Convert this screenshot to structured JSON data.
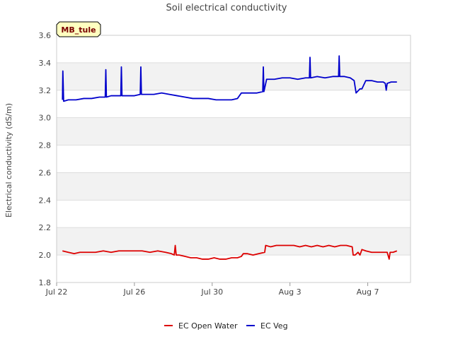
{
  "chart_data": {
    "type": "line",
    "title": "Soil electrical conductivity",
    "xlabel": "",
    "ylabel": "Electrical conductivity (dS/m)",
    "site_label": "MB_tule",
    "xlim": [
      0,
      18.2
    ],
    "ylim": [
      1.8,
      3.6
    ],
    "x_ticks": [
      {
        "x": 0,
        "label": "Jul 22"
      },
      {
        "x": 4,
        "label": "Jul 26"
      },
      {
        "x": 8,
        "label": "Jul 30"
      },
      {
        "x": 12,
        "label": "Aug 3"
      },
      {
        "x": 16,
        "label": "Aug 7"
      }
    ],
    "y_ticks": [
      {
        "y": 1.8,
        "label": "1.8"
      },
      {
        "y": 2.0,
        "label": "2.0"
      },
      {
        "y": 2.2,
        "label": "2.2"
      },
      {
        "y": 2.4,
        "label": "2.4"
      },
      {
        "y": 2.6,
        "label": "2.6"
      },
      {
        "y": 2.8,
        "label": "2.8"
      },
      {
        "y": 3.0,
        "label": "3.0"
      },
      {
        "y": 3.2,
        "label": "3.2"
      },
      {
        "y": 3.4,
        "label": "3.4"
      },
      {
        "y": 3.6,
        "label": "3.6"
      }
    ],
    "grid": true,
    "legend_position": "bottom-center",
    "series": [
      {
        "name": "EC Open Water",
        "color": "#dd0000",
        "x": [
          0.3,
          0.6,
          0.9,
          1.2,
          1.6,
          2.0,
          2.4,
          2.8,
          3.2,
          3.6,
          4.0,
          4.4,
          4.8,
          5.2,
          5.6,
          5.9,
          6.05,
          6.1,
          6.15,
          6.3,
          6.6,
          6.9,
          7.2,
          7.5,
          7.8,
          8.1,
          8.4,
          8.7,
          9.0,
          9.3,
          9.5,
          9.6,
          9.8,
          10.1,
          10.4,
          10.7,
          10.75,
          11.0,
          11.3,
          11.6,
          11.9,
          12.2,
          12.5,
          12.8,
          13.1,
          13.4,
          13.7,
          14.0,
          14.3,
          14.6,
          14.9,
          15.2,
          15.25,
          15.35,
          15.5,
          15.6,
          15.7,
          15.9,
          16.2,
          16.5,
          16.8,
          17.0,
          17.1,
          17.15,
          17.3,
          17.5
        ],
        "y": [
          2.03,
          2.02,
          2.01,
          2.02,
          2.02,
          2.02,
          2.03,
          2.02,
          2.03,
          2.03,
          2.03,
          2.03,
          2.02,
          2.03,
          2.02,
          2.01,
          2.0,
          2.07,
          2.0,
          2.0,
          1.99,
          1.98,
          1.98,
          1.97,
          1.97,
          1.98,
          1.97,
          1.97,
          1.98,
          1.98,
          1.99,
          2.01,
          2.01,
          2.0,
          2.01,
          2.02,
          2.07,
          2.06,
          2.07,
          2.07,
          2.07,
          2.07,
          2.06,
          2.07,
          2.06,
          2.07,
          2.06,
          2.07,
          2.06,
          2.07,
          2.07,
          2.06,
          2.0,
          2.0,
          2.02,
          2.0,
          2.04,
          2.03,
          2.02,
          2.02,
          2.02,
          2.02,
          1.97,
          2.02,
          2.02,
          2.03
        ]
      },
      {
        "name": "EC Veg",
        "color": "#0000cc",
        "x": [
          0.3,
          0.32,
          0.36,
          0.6,
          1.0,
          1.4,
          1.8,
          2.2,
          2.5,
          2.53,
          2.56,
          2.8,
          3.2,
          3.3,
          3.33,
          3.36,
          3.6,
          4.0,
          4.3,
          4.33,
          4.36,
          4.7,
          5.0,
          5.4,
          5.8,
          6.2,
          6.6,
          7.0,
          7.4,
          7.8,
          8.2,
          8.6,
          9.0,
          9.3,
          9.5,
          9.9,
          10.3,
          10.6,
          10.63,
          10.66,
          10.8,
          11.2,
          11.6,
          12.0,
          12.4,
          12.8,
          13.0,
          13.03,
          13.06,
          13.4,
          13.8,
          14.2,
          14.5,
          14.53,
          14.56,
          14.8,
          15.1,
          15.3,
          15.4,
          15.6,
          15.7,
          15.9,
          16.2,
          16.5,
          16.8,
          16.9,
          16.95,
          17.0,
          17.2,
          17.5
        ],
        "y": [
          3.13,
          3.34,
          3.12,
          3.13,
          3.13,
          3.14,
          3.14,
          3.15,
          3.15,
          3.35,
          3.15,
          3.16,
          3.16,
          3.16,
          3.37,
          3.16,
          3.16,
          3.16,
          3.17,
          3.37,
          3.17,
          3.17,
          3.17,
          3.18,
          3.17,
          3.16,
          3.15,
          3.14,
          3.14,
          3.14,
          3.13,
          3.13,
          3.13,
          3.14,
          3.18,
          3.18,
          3.18,
          3.19,
          3.37,
          3.19,
          3.28,
          3.28,
          3.29,
          3.29,
          3.28,
          3.29,
          3.29,
          3.44,
          3.29,
          3.3,
          3.29,
          3.3,
          3.3,
          3.45,
          3.3,
          3.3,
          3.29,
          3.27,
          3.18,
          3.21,
          3.21,
          3.27,
          3.27,
          3.26,
          3.26,
          3.25,
          3.2,
          3.25,
          3.26,
          3.26
        ]
      }
    ]
  }
}
